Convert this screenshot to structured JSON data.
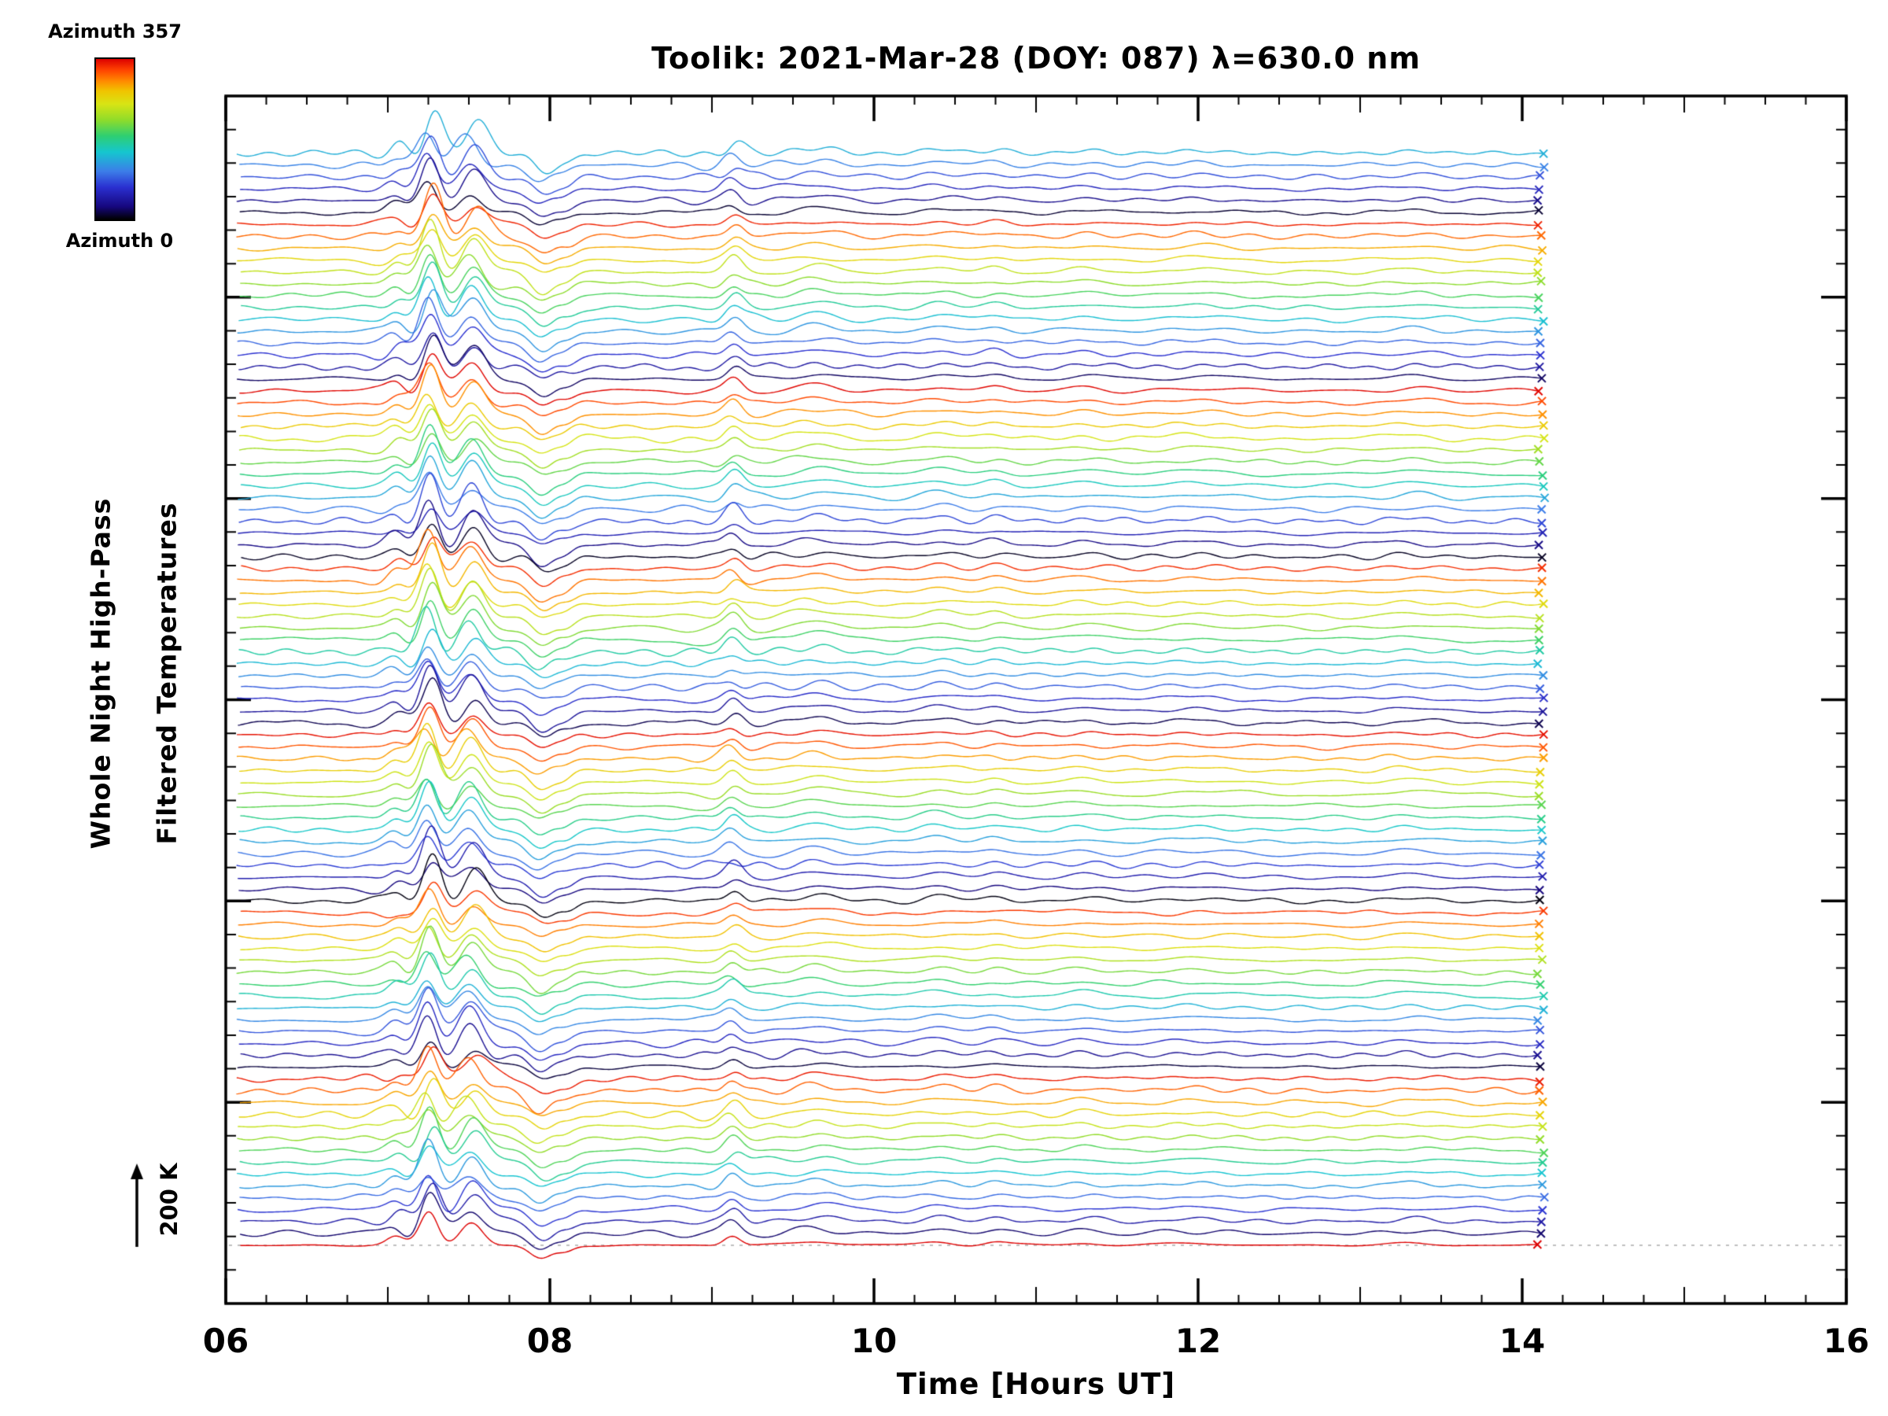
{
  "title": "Toolik: 2021-Mar-28 (DOY: 087) λ=630.0 nm",
  "colorbar": {
    "top_label": "Azimuth 357",
    "bottom_label": "Azimuth 0"
  },
  "y_axis": {
    "line1": "Whole Night High-Pass",
    "line2": "Filtered Temperatures"
  },
  "x_axis": {
    "label": "Time [Hours UT]"
  },
  "scale_bar": {
    "label": "200 K"
  },
  "chart_data": {
    "type": "line",
    "title": "Toolik: 2021-Mar-28 (DOY: 087) λ=630.0 nm",
    "xlabel": "Time [Hours UT]",
    "ylabel": "Whole Night High-Pass Filtered Temperatures",
    "xlim": [
      6,
      16
    ],
    "x_ticks": [
      {
        "label": "06",
        "value": 6
      },
      {
        "label": "08",
        "value": 8
      },
      {
        "label": "10",
        "value": 10
      },
      {
        "label": "12",
        "value": 12
      },
      {
        "label": "14",
        "value": 14
      },
      {
        "label": "16",
        "value": 16
      }
    ],
    "x_minor_tick_step_hours": 0.25,
    "x_data_range": [
      6.08,
      14.12
    ],
    "n_traces": 93,
    "trace_stack_order": "azimuth decreasing downward within each scan cycle, repeating ~6 cycles",
    "azimuth_range": [
      0,
      357
    ],
    "scale_bar_K": 200,
    "baseline_reference": "dashed gray line at baseline of bottom (azimuth 0, black) trace",
    "color_cycle": {
      "start_t": 0.38,
      "step_t": 0.069348,
      "note": "t = azimuth/357, wraps modulo 1 down the stack"
    },
    "colormap_stops": [
      {
        "t": 0.0,
        "c": "#000000"
      },
      {
        "t": 0.08,
        "c": "#16077e"
      },
      {
        "t": 0.2,
        "c": "#2a2fd0"
      },
      {
        "t": 0.3,
        "c": "#3c7de8"
      },
      {
        "t": 0.42,
        "c": "#15c6cf"
      },
      {
        "t": 0.52,
        "c": "#2ecf72"
      },
      {
        "t": 0.62,
        "c": "#8fdc2a"
      },
      {
        "t": 0.72,
        "c": "#d8e414"
      },
      {
        "t": 0.8,
        "c": "#f0c400"
      },
      {
        "t": 0.86,
        "c": "#ff8c00"
      },
      {
        "t": 0.93,
        "c": "#ff4400"
      },
      {
        "t": 1.0,
        "c": "#dd0000"
      }
    ],
    "wave_events": [
      {
        "time_ut": 7.05,
        "sigma_h": 0.05,
        "amp_K": 25
      },
      {
        "time_ut": 7.26,
        "sigma_h": 0.055,
        "amp_K": 120
      },
      {
        "time_ut": 7.52,
        "sigma_h": 0.07,
        "amp_K": 85
      },
      {
        "time_ut": 7.95,
        "sigma_h": 0.07,
        "amp_K": -50
      },
      {
        "time_ut": 8.1,
        "sigma_h": 0.05,
        "amp_K": -20
      },
      {
        "time_ut": 9.13,
        "sigma_h": 0.05,
        "amp_K": 35
      },
      {
        "time_ut": 9.65,
        "sigma_h": 0.12,
        "amp_K": 15
      },
      {
        "time_ut": 10.4,
        "sigma_h": 0.1,
        "amp_K": 13
      },
      {
        "time_ut": 10.75,
        "sigma_h": 0.07,
        "amp_K": 11
      },
      {
        "time_ut": 11.3,
        "sigma_h": 0.1,
        "amp_K": 9
      },
      {
        "time_ut": 12.0,
        "sigma_h": 0.15,
        "amp_K": 8
      },
      {
        "time_ut": 13.3,
        "sigma_h": 0.12,
        "amp_K": 8
      }
    ],
    "noise": {
      "components": 5,
      "base_amp_K": 8,
      "freq_min_per_hour": 0.6,
      "freq_span_per_hour": 3.2,
      "event_boosts": [
        {
          "center": 7.3,
          "sigma": 0.25,
          "gain": 2.5
        },
        {
          "center": 9.15,
          "sigma": 0.3,
          "gain": 0.8
        }
      ]
    }
  }
}
